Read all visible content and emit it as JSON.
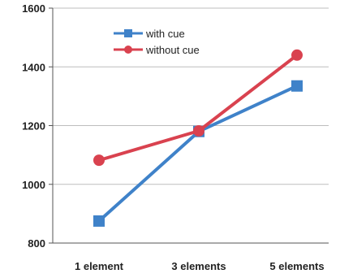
{
  "chart_data": {
    "type": "line",
    "categories": [
      "1 element",
      "3 elements",
      "5 elements"
    ],
    "series": [
      {
        "name": "with cue",
        "values": [
          875,
          1180,
          1335
        ],
        "color": "#3f82c9",
        "marker": "square"
      },
      {
        "name": "without cue",
        "values": [
          1082,
          1182,
          1440
        ],
        "color": "#d9424f",
        "marker": "circle"
      }
    ],
    "title": "",
    "xlabel": "",
    "ylabel": "",
    "ylim": [
      800,
      1600
    ],
    "yticks": [
      800,
      1000,
      1200,
      1400,
      1600
    ],
    "grid": true,
    "legend": "top-center"
  }
}
